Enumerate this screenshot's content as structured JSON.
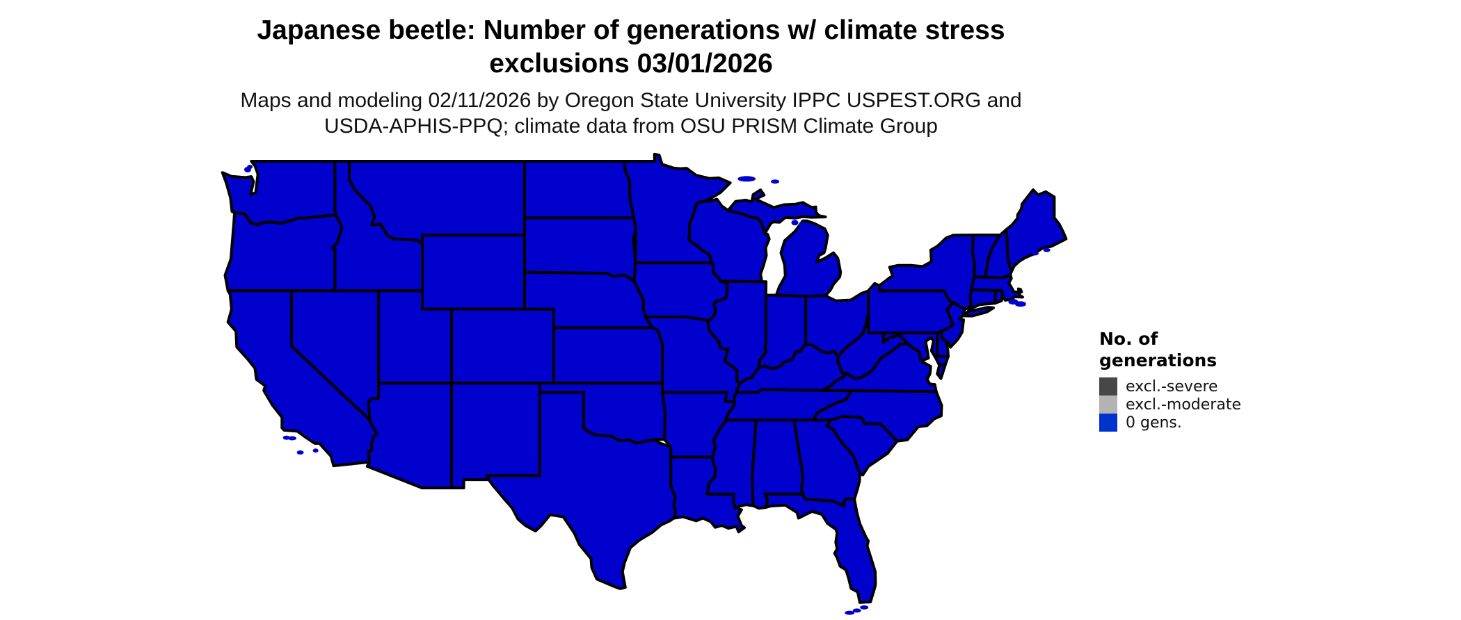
{
  "title": {
    "line1": "Japanese beetle: Number of generations w/ climate stress",
    "line2": "exclusions 03/01/2026"
  },
  "subtitle": {
    "line1": "Maps and modeling 02/11/2026 by Oregon State University IPPC USPEST.ORG and",
    "line2": "USDA-APHIS-PPQ; climate data from OSU PRISM Climate Group"
  },
  "legend": {
    "title_line1": "No. of",
    "title_line2": "generations",
    "entries": [
      {
        "label": "excl.-severe",
        "color": "#474747"
      },
      {
        "label": "excl.-moderate",
        "color": "#b3b3b3"
      },
      {
        "label": "0 gens.",
        "color": "#0033cc"
      }
    ]
  },
  "map": {
    "fill_color": "#0101ce",
    "border_color": "#000000",
    "background_color": "#ffffff",
    "all_regions_value": "0 gens.",
    "regions": [
      "Washington",
      "Oregon",
      "California",
      "Nevada",
      "Idaho",
      "Montana",
      "Wyoming",
      "Utah",
      "Colorado",
      "Arizona",
      "New Mexico",
      "North Dakota",
      "South Dakota",
      "Nebraska",
      "Kansas",
      "Oklahoma",
      "Texas",
      "Minnesota",
      "Iowa",
      "Missouri",
      "Arkansas",
      "Louisiana",
      "Wisconsin",
      "Illinois",
      "Michigan",
      "Indiana",
      "Ohio",
      "Kentucky",
      "Tennessee",
      "Mississippi",
      "Alabama",
      "Georgia",
      "Florida",
      "South Carolina",
      "North Carolina",
      "Virginia",
      "West Virginia",
      "Maryland",
      "Delaware",
      "Pennsylvania",
      "New Jersey",
      "New York",
      "Connecticut",
      "Rhode Island",
      "Massachusetts",
      "Vermont",
      "New Hampshire",
      "Maine"
    ]
  }
}
